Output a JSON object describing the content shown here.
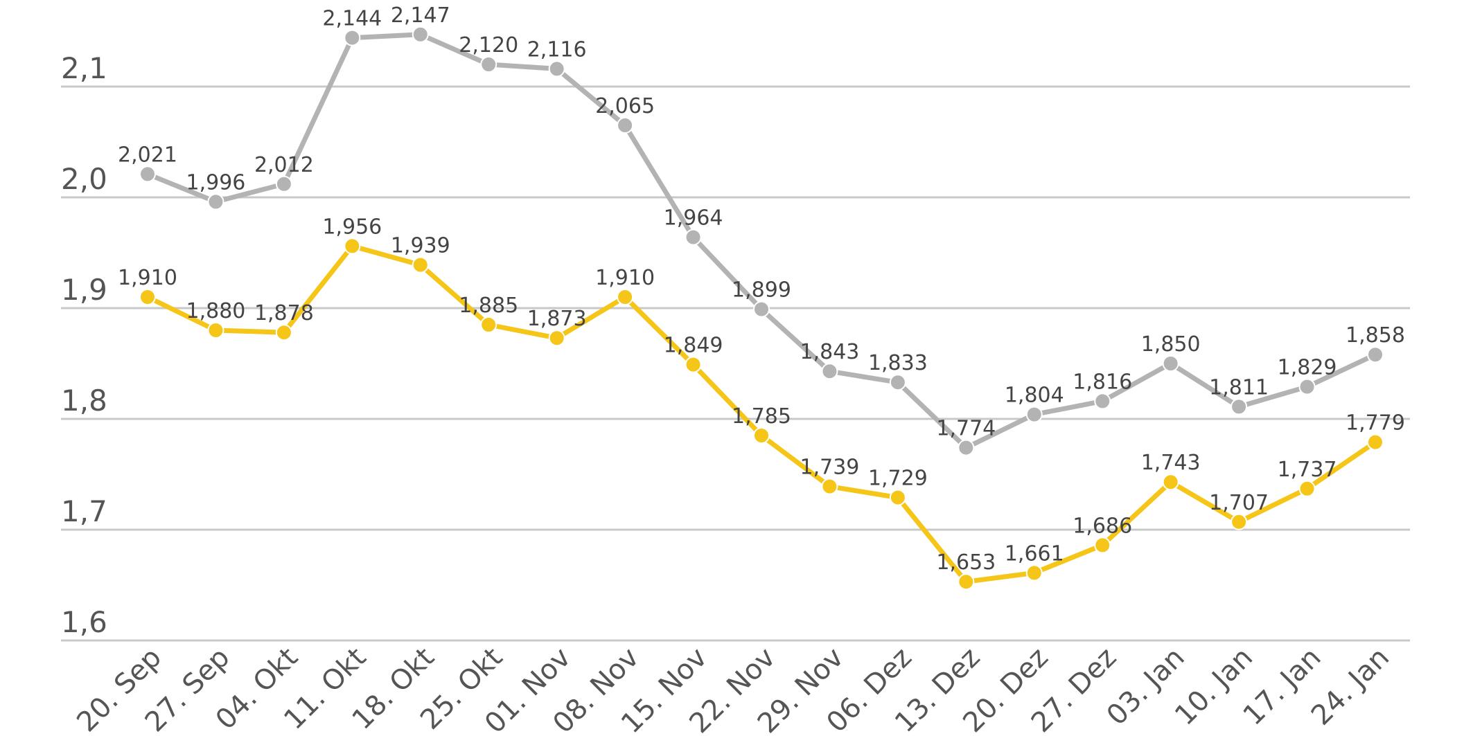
{
  "chart_data": {
    "type": "line",
    "title": "",
    "xlabel": "",
    "ylabel": "",
    "ylim": [
      1.6,
      2.1
    ],
    "yticks": [
      "1,6",
      "1,7",
      "1,8",
      "1,9",
      "2,0",
      "2,1"
    ],
    "grid": true,
    "categories": [
      "20. Sep",
      "27. Sep",
      "04. Okt",
      "11. Okt",
      "18. Okt",
      "25. Okt",
      "01. Nov",
      "08. Nov",
      "15. Nov",
      "22. Nov",
      "29. Nov",
      "06. Dez",
      "13. Dez",
      "20. Dez",
      "27. Dez",
      "03. Jan",
      "10. Jan",
      "17. Jan",
      "24. Jan"
    ],
    "series": [
      {
        "name": "grey",
        "color": "#b3b3b3",
        "values": [
          2.021,
          1.996,
          2.012,
          2.144,
          2.147,
          2.12,
          2.116,
          2.065,
          1.964,
          1.899,
          1.843,
          1.833,
          1.774,
          1.804,
          1.816,
          1.85,
          1.811,
          1.829,
          1.858
        ],
        "labels": [
          "2,021",
          "1,996",
          "2,012",
          "2,144",
          "2,147",
          "2,120",
          "2,116",
          "2,065",
          "1,964",
          "1,899",
          "1,843",
          "1,833",
          "1,774",
          "1,804",
          "1,816",
          "1,850",
          "1,811",
          "1,829",
          "1,858"
        ]
      },
      {
        "name": "yellow",
        "color": "#f5c518",
        "values": [
          1.91,
          1.88,
          1.878,
          1.956,
          1.939,
          1.885,
          1.873,
          1.91,
          1.849,
          1.785,
          1.739,
          1.729,
          1.653,
          1.661,
          1.686,
          1.743,
          1.707,
          1.737,
          1.779
        ],
        "labels": [
          "1,910",
          "1,880",
          "1,878",
          "1,956",
          "1,939",
          "1,885",
          "1,873",
          "1,910",
          "1,849",
          "1,785",
          "1,739",
          "1,729",
          "1,653",
          "1,661",
          "1,686",
          "1,743",
          "1,707",
          "1,737",
          "1,779"
        ]
      }
    ]
  }
}
